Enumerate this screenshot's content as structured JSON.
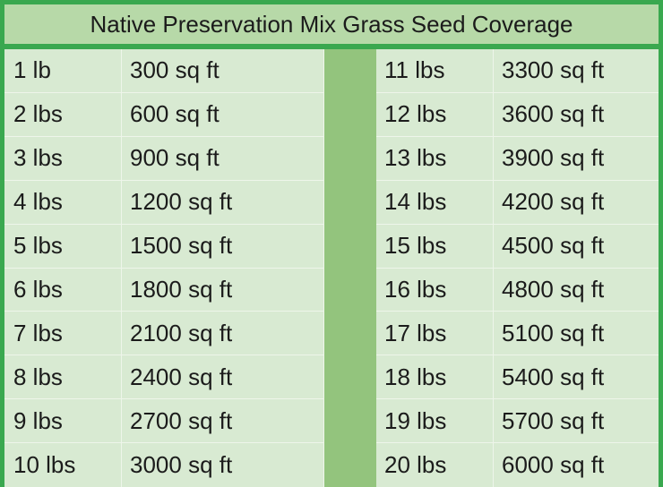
{
  "title": "Native Preservation Mix Grass Seed Coverage",
  "left_rows": [
    {
      "weight": "1 lb",
      "coverage": "300 sq ft"
    },
    {
      "weight": "2 lbs",
      "coverage": "600 sq ft"
    },
    {
      "weight": "3 lbs",
      "coverage": "900 sq ft"
    },
    {
      "weight": "4 lbs",
      "coverage": "1200 sq ft"
    },
    {
      "weight": "5 lbs",
      "coverage": "1500 sq ft"
    },
    {
      "weight": "6 lbs",
      "coverage": "1800 sq ft"
    },
    {
      "weight": "7 lbs",
      "coverage": "2100 sq ft"
    },
    {
      "weight": "8 lbs",
      "coverage": "2400 sq ft"
    },
    {
      "weight": "9 lbs",
      "coverage": "2700 sq ft"
    },
    {
      "weight": "10 lbs",
      "coverage": "3000 sq ft"
    }
  ],
  "right_rows": [
    {
      "weight": "11 lbs",
      "coverage": "3300 sq ft"
    },
    {
      "weight": "12 lbs",
      "coverage": "3600 sq ft"
    },
    {
      "weight": "13 lbs",
      "coverage": "3900 sq ft"
    },
    {
      "weight": "14 lbs",
      "coverage": "4200 sq ft"
    },
    {
      "weight": "15 lbs",
      "coverage": "4500 sq ft"
    },
    {
      "weight": "16 lbs",
      "coverage": "4800 sq ft"
    },
    {
      "weight": "17 lbs",
      "coverage": "5100 sq ft"
    },
    {
      "weight": "18 lbs",
      "coverage": "5400 sq ft"
    },
    {
      "weight": "19 lbs",
      "coverage": "5700 sq ft"
    },
    {
      "weight": "20 lbs",
      "coverage": "6000 sq ft"
    }
  ],
  "colors": {
    "border": "#3aa84f",
    "title_background": "#b7d9a8",
    "cell_background": "#d8ead2",
    "divider": "#93c47d"
  }
}
